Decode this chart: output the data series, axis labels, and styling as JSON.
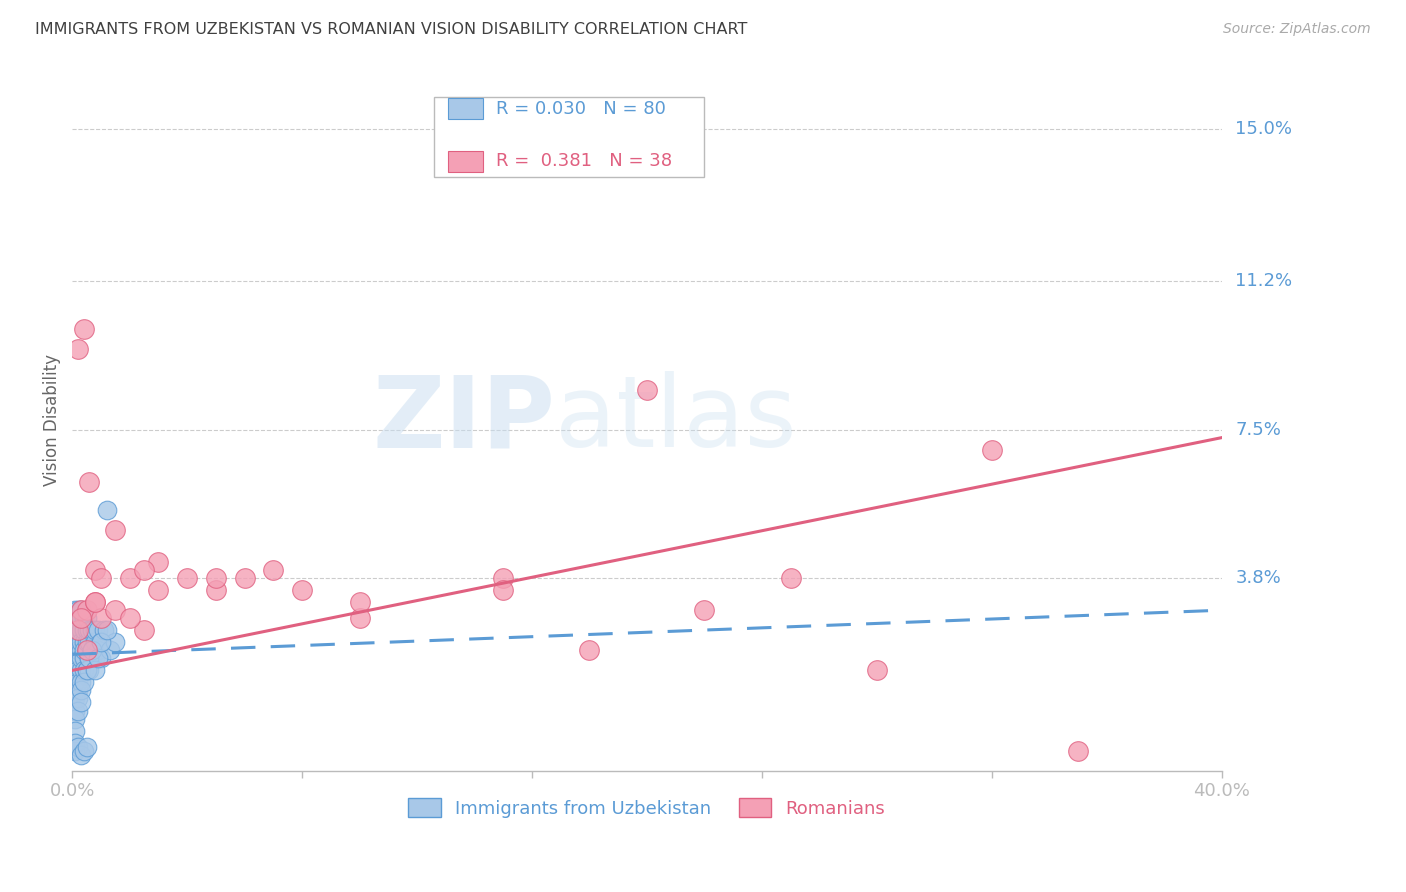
{
  "title": "IMMIGRANTS FROM UZBEKISTAN VS ROMANIAN VISION DISABILITY CORRELATION CHART",
  "source": "Source: ZipAtlas.com",
  "ylabel": "Vision Disability",
  "ytick_labels": [
    "15.0%",
    "11.2%",
    "7.5%",
    "3.8%"
  ],
  "ytick_values": [
    0.15,
    0.112,
    0.075,
    0.038
  ],
  "xlim": [
    0.0,
    0.4
  ],
  "ylim": [
    -0.01,
    0.165
  ],
  "watermark_zip": "ZIP",
  "watermark_atlas": "atlas",
  "blue_fill": "#A8C8E8",
  "blue_edge": "#5B9BD5",
  "pink_fill": "#F4A0B5",
  "pink_edge": "#E06080",
  "blue_line_color": "#5B9BD5",
  "pink_line_color": "#E06080",
  "title_color": "#404040",
  "axis_label_color": "#5B9BD5",
  "background_color": "#FFFFFF",
  "grid_color": "#CCCCCC",
  "uzb_x": [
    0.001,
    0.001,
    0.001,
    0.001,
    0.001,
    0.001,
    0.001,
    0.001,
    0.001,
    0.001,
    0.002,
    0.002,
    0.002,
    0.002,
    0.002,
    0.002,
    0.002,
    0.002,
    0.002,
    0.002,
    0.003,
    0.003,
    0.003,
    0.003,
    0.003,
    0.003,
    0.003,
    0.003,
    0.004,
    0.004,
    0.004,
    0.004,
    0.004,
    0.004,
    0.005,
    0.005,
    0.005,
    0.005,
    0.005,
    0.006,
    0.006,
    0.006,
    0.006,
    0.007,
    0.007,
    0.007,
    0.008,
    0.008,
    0.008,
    0.009,
    0.009,
    0.01,
    0.01,
    0.011,
    0.012,
    0.013,
    0.015,
    0.001,
    0.001,
    0.001,
    0.002,
    0.002,
    0.003,
    0.003,
    0.004,
    0.005,
    0.006,
    0.007,
    0.008,
    0.009,
    0.01,
    0.012,
    0.001,
    0.001,
    0.002,
    0.003,
    0.004,
    0.005
  ],
  "uzb_y": [
    0.02,
    0.022,
    0.025,
    0.018,
    0.015,
    0.012,
    0.028,
    0.01,
    0.03,
    0.008,
    0.022,
    0.018,
    0.025,
    0.02,
    0.015,
    0.028,
    0.012,
    0.03,
    0.01,
    0.025,
    0.02,
    0.025,
    0.015,
    0.022,
    0.018,
    0.028,
    0.012,
    0.03,
    0.022,
    0.018,
    0.025,
    0.015,
    0.028,
    0.02,
    0.02,
    0.025,
    0.015,
    0.028,
    0.022,
    0.022,
    0.018,
    0.025,
    0.015,
    0.02,
    0.025,
    0.018,
    0.022,
    0.018,
    0.025,
    0.02,
    0.025,
    0.022,
    0.018,
    0.025,
    0.055,
    0.02,
    0.022,
    0.005,
    0.003,
    0.0,
    0.008,
    0.005,
    0.01,
    0.007,
    0.012,
    0.015,
    0.018,
    0.02,
    0.015,
    0.018,
    0.022,
    0.025,
    -0.005,
    -0.003,
    -0.004,
    -0.006,
    -0.005,
    -0.004
  ],
  "rom_x": [
    0.002,
    0.004,
    0.006,
    0.008,
    0.01,
    0.015,
    0.02,
    0.025,
    0.03,
    0.04,
    0.05,
    0.06,
    0.08,
    0.1,
    0.15,
    0.18,
    0.22,
    0.28,
    0.35,
    0.003,
    0.005,
    0.008,
    0.01,
    0.015,
    0.02,
    0.025,
    0.03,
    0.05,
    0.07,
    0.1,
    0.15,
    0.2,
    0.002,
    0.003,
    0.005,
    0.008,
    0.25,
    0.32
  ],
  "rom_y": [
    0.095,
    0.1,
    0.062,
    0.04,
    0.038,
    0.05,
    0.038,
    0.025,
    0.042,
    0.038,
    0.035,
    0.038,
    0.035,
    0.028,
    0.038,
    0.02,
    0.03,
    0.015,
    -0.005,
    0.03,
    0.03,
    0.032,
    0.028,
    0.03,
    0.028,
    0.04,
    0.035,
    0.038,
    0.04,
    0.032,
    0.035,
    0.085,
    0.025,
    0.028,
    0.02,
    0.032,
    0.038,
    0.07
  ],
  "uzb_trend_x": [
    0.0,
    0.4
  ],
  "uzb_trend_y": [
    0.019,
    0.03
  ],
  "rom_trend_x": [
    0.0,
    0.4
  ],
  "rom_trend_y": [
    0.015,
    0.073
  ]
}
